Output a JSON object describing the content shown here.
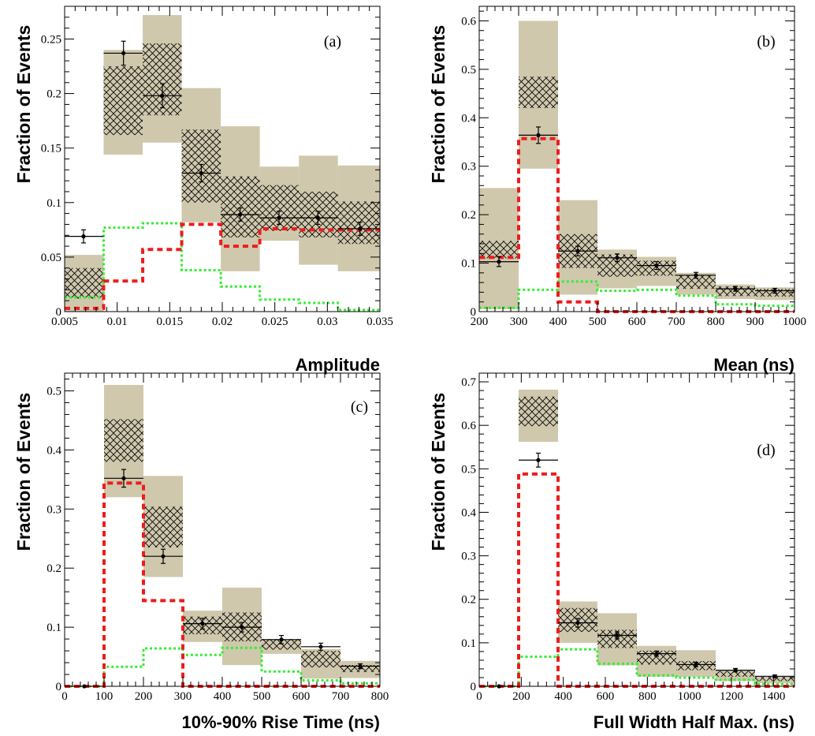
{
  "colors": {
    "band": "#cfc8ad",
    "hatch": "#000000",
    "red": "#ee1c1c",
    "green": "#33ee33",
    "data": "#000000"
  },
  "chart_data": [
    {
      "type": "histogram",
      "tag": "(a)",
      "xlabel": "Amplitude",
      "ylabel": "Fraction of Events",
      "xlim": [
        0.005,
        0.035
      ],
      "ylim": [
        0,
        0.28
      ],
      "xticks": [
        0.005,
        0.01,
        0.015,
        0.02,
        0.025,
        0.03,
        0.035
      ],
      "xtick_labels": [
        "0.005",
        "0.01",
        "0.015",
        "0.02",
        "0.025",
        "0.03",
        "0.035"
      ],
      "yticks": [
        0,
        0.05,
        0.1,
        0.15,
        0.2,
        0.25
      ],
      "ytick_labels": [
        "0",
        "0.05",
        "0.1",
        "0.15",
        "0.2",
        "0.25"
      ],
      "bin_edges": [
        0.005,
        0.00871,
        0.01243,
        0.01614,
        0.01986,
        0.02357,
        0.02729,
        0.031,
        0.035
      ],
      "band_outer": [
        [
          0,
          0.052
        ],
        [
          0.144,
          0.24
        ],
        [
          0.155,
          0.272
        ],
        [
          0.082,
          0.205
        ],
        [
          0.037,
          0.17
        ],
        [
          0.065,
          0.133
        ],
        [
          0.043,
          0.143
        ],
        [
          0.037,
          0.134
        ]
      ],
      "band_inner": [
        [
          0.012,
          0.04
        ],
        [
          0.162,
          0.225
        ],
        [
          0.18,
          0.246
        ],
        [
          0.1,
          0.167
        ],
        [
          0.068,
          0.124
        ],
        [
          0.074,
          0.116
        ],
        [
          0.068,
          0.11
        ],
        [
          0.062,
          0.101
        ]
      ],
      "red": [
        0.003,
        0.028,
        0.057,
        0.08,
        0.06,
        0.076,
        0.075,
        0.075
      ],
      "green": [
        0.013,
        0.077,
        0.081,
        0.038,
        0.023,
        0.011,
        0.008,
        0.0015
      ],
      "data": [
        {
          "x": 0.0068,
          "y": 0.069,
          "err": 0.006
        },
        {
          "x": 0.0106,
          "y": 0.237,
          "err": 0.011
        },
        {
          "x": 0.0143,
          "y": 0.198,
          "err": 0.011
        },
        {
          "x": 0.018,
          "y": 0.127,
          "err": 0.008
        },
        {
          "x": 0.0217,
          "y": 0.089,
          "err": 0.006
        },
        {
          "x": 0.0254,
          "y": 0.086,
          "err": 0.006
        },
        {
          "x": 0.0291,
          "y": 0.086,
          "err": 0.006
        },
        {
          "x": 0.0331,
          "y": 0.076,
          "err": 0.006
        }
      ]
    },
    {
      "type": "histogram",
      "tag": "(b)",
      "xlabel": "Mean (ns)",
      "ylabel": "Fraction of Events",
      "xlim": [
        200,
        1000
      ],
      "ylim": [
        0,
        0.63
      ],
      "xticks": [
        200,
        300,
        400,
        500,
        600,
        700,
        800,
        900,
        1000
      ],
      "xtick_labels": [
        "200",
        "300",
        "400",
        "500",
        "600",
        "700",
        "800",
        "900",
        "1000"
      ],
      "yticks": [
        0,
        0.1,
        0.2,
        0.3,
        0.4,
        0.5,
        0.6
      ],
      "ytick_labels": [
        "0",
        "0.1",
        "0.2",
        "0.3",
        "0.4",
        "0.5",
        "0.6"
      ],
      "bin_edges": [
        200,
        300,
        400,
        500,
        600,
        700,
        800,
        900,
        1000
      ],
      "band_outer": [
        [
          0.005,
          0.255
        ],
        [
          0.295,
          0.6
        ],
        [
          0.035,
          0.23
        ],
        [
          0.048,
          0.128
        ],
        [
          0.053,
          0.113
        ],
        [
          0.035,
          0.08
        ],
        [
          0.026,
          0.056
        ],
        [
          0.024,
          0.05
        ]
      ],
      "band_inner": [
        [
          0.11,
          0.146
        ],
        [
          0.42,
          0.485
        ],
        [
          0.09,
          0.16
        ],
        [
          0.072,
          0.118
        ],
        [
          0.074,
          0.105
        ],
        [
          0.047,
          0.075
        ],
        [
          0.032,
          0.052
        ],
        [
          0.031,
          0.047
        ]
      ],
      "red": [
        0.112,
        0.357,
        0.02,
        0.0,
        0.0,
        0.0,
        0.0,
        0.0
      ],
      "green": [
        0.008,
        0.045,
        0.062,
        0.043,
        0.045,
        0.033,
        0.015,
        0.012
      ],
      "data": [
        {
          "x": 250,
          "y": 0.103,
          "err": 0.01
        },
        {
          "x": 350,
          "y": 0.364,
          "err": 0.017
        },
        {
          "x": 450,
          "y": 0.125,
          "err": 0.01
        },
        {
          "x": 550,
          "y": 0.111,
          "err": 0.008
        },
        {
          "x": 650,
          "y": 0.095,
          "err": 0.008
        },
        {
          "x": 750,
          "y": 0.075,
          "err": 0.006
        },
        {
          "x": 850,
          "y": 0.047,
          "err": 0.005
        },
        {
          "x": 950,
          "y": 0.043,
          "err": 0.005
        }
      ]
    },
    {
      "type": "histogram",
      "tag": "(c)",
      "xlabel": "10%-90% Rise Time (ns)",
      "ylabel": "Fraction of Events",
      "xlim": [
        0,
        800
      ],
      "ylim": [
        0,
        0.53
      ],
      "xticks": [
        0,
        100,
        200,
        300,
        400,
        500,
        600,
        700,
        800
      ],
      "xtick_labels": [
        "0",
        "100",
        "200",
        "300",
        "400",
        "500",
        "600",
        "700",
        "800"
      ],
      "yticks": [
        0,
        0.1,
        0.2,
        0.3,
        0.4,
        0.5
      ],
      "ytick_labels": [
        "0",
        "0.1",
        "0.2",
        "0.3",
        "0.4",
        "0.5"
      ],
      "bin_edges": [
        0,
        100,
        200,
        300,
        400,
        500,
        600,
        700,
        800
      ],
      "band_outer": [
        [
          0,
          0
        ],
        [
          0.32,
          0.51
        ],
        [
          0.185,
          0.356
        ],
        [
          0.075,
          0.128
        ],
        [
          0.036,
          0.167
        ],
        [
          0.055,
          0.08
        ],
        [
          0.013,
          0.063
        ],
        [
          0.014,
          0.043
        ]
      ],
      "band_inner": [
        [
          0,
          0
        ],
        [
          0.38,
          0.452
        ],
        [
          0.235,
          0.304
        ],
        [
          0.088,
          0.118
        ],
        [
          0.076,
          0.125
        ],
        [
          0.062,
          0.08
        ],
        [
          0.032,
          0.06
        ],
        [
          0.024,
          0.036
        ]
      ],
      "red": [
        0.0,
        0.344,
        0.145,
        0.0,
        0.0,
        0.0,
        0.0,
        0.0
      ],
      "green": [
        0.0,
        0.033,
        0.064,
        0.053,
        0.065,
        0.025,
        0.01,
        0.005
      ],
      "data": [
        {
          "x": 50,
          "y": 0.0,
          "err": 0.0
        },
        {
          "x": 150,
          "y": 0.352,
          "err": 0.015
        },
        {
          "x": 250,
          "y": 0.22,
          "err": 0.012
        },
        {
          "x": 350,
          "y": 0.106,
          "err": 0.009
        },
        {
          "x": 450,
          "y": 0.1,
          "err": 0.008
        },
        {
          "x": 550,
          "y": 0.079,
          "err": 0.007
        },
        {
          "x": 650,
          "y": 0.067,
          "err": 0.006
        },
        {
          "x": 750,
          "y": 0.034,
          "err": 0.004
        }
      ]
    },
    {
      "type": "histogram",
      "tag": "(d)",
      "xlabel": "Full Width Half Max. (ns)",
      "ylabel": "Fraction of Events",
      "xlim": [
        0,
        1500
      ],
      "ylim": [
        0,
        0.72
      ],
      "xticks": [
        0,
        200,
        400,
        600,
        800,
        1000,
        1200,
        1400
      ],
      "xtick_labels": [
        "0",
        "200",
        "400",
        "600",
        "800",
        "1000",
        "1200",
        "1400"
      ],
      "yticks": [
        0,
        0.1,
        0.2,
        0.3,
        0.4,
        0.5,
        0.6,
        0.7
      ],
      "ytick_labels": [
        "0",
        "0.1",
        "0.2",
        "0.3",
        "0.4",
        "0.5",
        "0.6",
        "0.7"
      ],
      "bin_edges": [
        0,
        187.5,
        375,
        562.5,
        750,
        937.5,
        1125,
        1312.5,
        1500
      ],
      "band_outer": [
        [
          0,
          0
        ],
        [
          0.562,
          0.682
        ],
        [
          0.1,
          0.195
        ],
        [
          0.048,
          0.168
        ],
        [
          0.022,
          0.093
        ],
        [
          0.022,
          0.083
        ],
        [
          0.012,
          0.038
        ],
        [
          0.007,
          0.022
        ]
      ],
      "band_inner": [
        [
          0,
          0
        ],
        [
          0.598,
          0.666
        ],
        [
          0.125,
          0.18
        ],
        [
          0.088,
          0.13
        ],
        [
          0.05,
          0.082
        ],
        [
          0.037,
          0.058
        ],
        [
          0.022,
          0.035
        ],
        [
          0.012,
          0.022
        ]
      ],
      "red": [
        0.0,
        0.488,
        0.0,
        0.0,
        0.0,
        0.0,
        0.0,
        0.0
      ],
      "green": [
        0.0,
        0.068,
        0.085,
        0.052,
        0.025,
        0.02,
        0.015,
        0.005
      ],
      "data": [
        {
          "x": 94,
          "y": 0.0,
          "err": 0.0
        },
        {
          "x": 281,
          "y": 0.52,
          "err": 0.016
        },
        {
          "x": 469,
          "y": 0.146,
          "err": 0.01
        },
        {
          "x": 656,
          "y": 0.117,
          "err": 0.008
        },
        {
          "x": 844,
          "y": 0.075,
          "err": 0.006
        },
        {
          "x": 1031,
          "y": 0.05,
          "err": 0.005
        },
        {
          "x": 1219,
          "y": 0.037,
          "err": 0.004
        },
        {
          "x": 1406,
          "y": 0.023,
          "err": 0.003
        }
      ]
    }
  ]
}
